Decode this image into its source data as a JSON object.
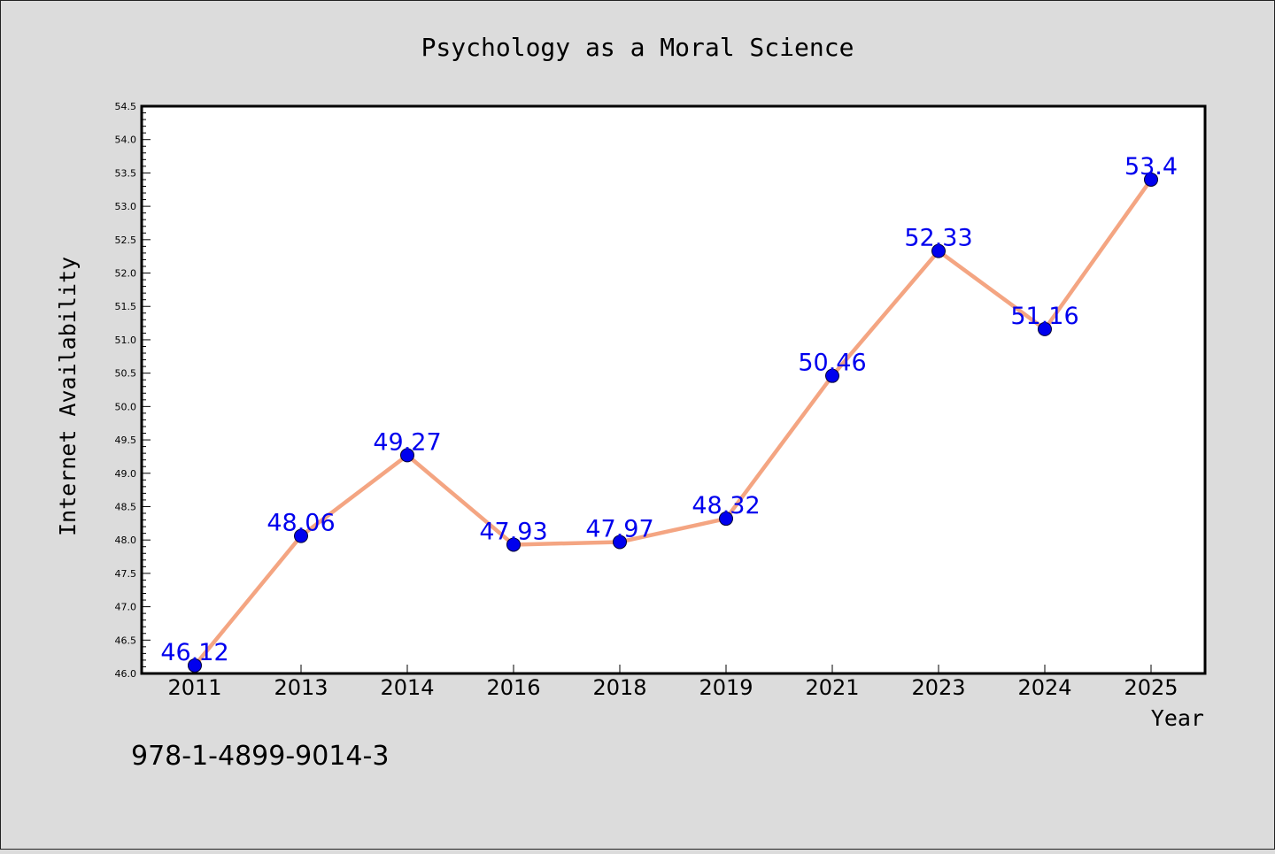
{
  "chart_data": {
    "type": "line",
    "title": "Psychology as a Moral Science",
    "xlabel": "Year",
    "ylabel": "Internet Availability",
    "footnote": "978-1-4899-9014-3",
    "categories": [
      "2011",
      "2013",
      "2014",
      "2016",
      "2018",
      "2019",
      "2021",
      "2023",
      "2024",
      "2025"
    ],
    "values": [
      46.12,
      48.06,
      49.27,
      47.93,
      47.97,
      48.32,
      50.46,
      52.33,
      51.16,
      53.4
    ],
    "data_labels": [
      "46.12",
      "48.06",
      "49.27",
      "47.93",
      "47.97",
      "48.32",
      "50.46",
      "52.33",
      "51.16",
      "53.4"
    ],
    "ylim": [
      46.0,
      54.5
    ],
    "yticks": [
      "46.0",
      "46.5",
      "47.0",
      "47.5",
      "48.0",
      "48.5",
      "49.0",
      "49.5",
      "50.0",
      "50.5",
      "51.0",
      "51.5",
      "52.0",
      "52.5",
      "53.0",
      "53.5",
      "54.0",
      "54.5"
    ],
    "grid": false,
    "line_color": "#f4a582",
    "marker_color": "#0000ee",
    "label_color": "#0000ee"
  }
}
